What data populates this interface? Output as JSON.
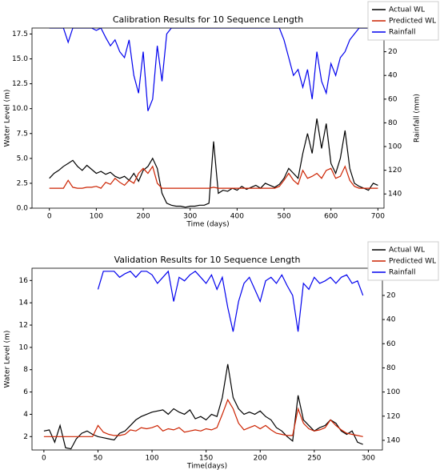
{
  "chart_data": [
    {
      "type": "line",
      "title": "Calibration Results for 10 Sequence Length",
      "xlabel": "Time (days)",
      "ylabel": "Water Level (m)",
      "y2label": "Rainfall (mm)",
      "legend": "upper right",
      "x": [
        0,
        10,
        20,
        30,
        40,
        50,
        60,
        70,
        80,
        90,
        100,
        110,
        120,
        130,
        140,
        150,
        160,
        170,
        180,
        190,
        200,
        210,
        220,
        230,
        240,
        250,
        260,
        270,
        280,
        290,
        300,
        310,
        320,
        330,
        340,
        350,
        360,
        370,
        380,
        390,
        400,
        410,
        420,
        430,
        440,
        450,
        460,
        470,
        480,
        490,
        500,
        510,
        520,
        530,
        540,
        550,
        560,
        570,
        580,
        590,
        600,
        610,
        620,
        630,
        640,
        650,
        660,
        670,
        680,
        690,
        700
      ],
      "series": [
        {
          "name": "Actual WL",
          "color": "#000000",
          "values": [
            3.0,
            3.5,
            3.8,
            4.2,
            4.5,
            4.8,
            4.2,
            3.8,
            4.3,
            3.9,
            3.5,
            3.7,
            3.4,
            3.6,
            3.2,
            3.0,
            3.2,
            2.8,
            3.5,
            2.7,
            3.8,
            4.2,
            5.0,
            4.0,
            1.5,
            0.5,
            0.3,
            0.2,
            0.2,
            0.1,
            0.2,
            0.2,
            0.3,
            0.3,
            0.5,
            6.7,
            1.5,
            1.8,
            1.7,
            2.0,
            1.8,
            2.2,
            1.9,
            2.1,
            2.3,
            2.0,
            2.5,
            2.3,
            2.1,
            2.4,
            3.0,
            4.0,
            3.5,
            3.0,
            5.5,
            7.5,
            5.5,
            9.0,
            6.0,
            8.5,
            4.5,
            3.5,
            5.0,
            7.8,
            4.0,
            2.5,
            2.2,
            2.0,
            1.8,
            2.5,
            2.3
          ]
        },
        {
          "name": "Predicted WL",
          "color": "#cc2200",
          "values": [
            2.0,
            2.0,
            2.0,
            2.0,
            2.8,
            2.1,
            2.0,
            2.0,
            2.1,
            2.1,
            2.2,
            2.0,
            2.6,
            2.4,
            3.0,
            2.6,
            2.3,
            2.8,
            2.5,
            3.5,
            4.0,
            3.5,
            4.2,
            2.5,
            2.0,
            2.0,
            2.0,
            2.0,
            2.0,
            2.0,
            2.0,
            2.0,
            2.0,
            2.0,
            2.0,
            2.1,
            2.0,
            2.0,
            2.0,
            2.0,
            2.0,
            2.0,
            2.0,
            2.0,
            2.0,
            2.0,
            2.0,
            2.0,
            2.0,
            2.2,
            2.8,
            3.5,
            2.8,
            2.4,
            3.8,
            3.0,
            3.2,
            3.5,
            3.0,
            3.8,
            4.0,
            3.0,
            3.2,
            4.2,
            2.8,
            2.2,
            2.0,
            2.0,
            2.0,
            2.0,
            2.0
          ]
        },
        {
          "name": "Rainfall",
          "color": "#0000ee",
          "axis": "y2",
          "values": [
            0,
            0,
            0,
            0,
            12,
            0,
            0,
            0,
            0,
            0,
            2,
            0,
            8,
            15,
            10,
            20,
            25,
            10,
            40,
            55,
            20,
            70,
            60,
            15,
            45,
            5,
            0,
            0,
            0,
            0,
            0,
            0,
            0,
            0,
            0,
            0,
            0,
            0,
            0,
            0,
            0,
            0,
            0,
            0,
            0,
            0,
            0,
            0,
            0,
            0,
            10,
            25,
            40,
            35,
            50,
            35,
            60,
            20,
            45,
            55,
            30,
            40,
            25,
            20,
            10,
            5,
            0,
            0,
            0,
            0,
            0
          ]
        }
      ],
      "xlim": [
        -37,
        713
      ],
      "ylim": [
        0,
        18.1
      ],
      "y2lim": [
        152,
        0
      ],
      "xticks": [
        0,
        100,
        200,
        300,
        400,
        500,
        600,
        700
      ],
      "yticks": [
        {
          "value": 0,
          "label": "0.0"
        },
        2.5,
        {
          "value": 5,
          "label": "5.0"
        },
        7.5,
        {
          "value": 10,
          "label": "10.0"
        },
        12.5,
        {
          "value": 15,
          "label": "15.0"
        },
        17.5
      ],
      "y2ticks": [
        20,
        40,
        60,
        80,
        100,
        120,
        140
      ]
    },
    {
      "type": "line",
      "title": "Validation Results for 10 Sequence Length",
      "xlabel": "Time(days)",
      "ylabel": "Water Level (m)",
      "legend": "upper right",
      "x": [
        0,
        5,
        10,
        15,
        20,
        25,
        30,
        35,
        40,
        45,
        50,
        55,
        60,
        65,
        70,
        75,
        80,
        85,
        90,
        95,
        100,
        105,
        110,
        115,
        120,
        125,
        130,
        135,
        140,
        145,
        150,
        155,
        160,
        165,
        170,
        175,
        180,
        185,
        190,
        195,
        200,
        205,
        210,
        215,
        220,
        225,
        230,
        235,
        240,
        245,
        250,
        255,
        260,
        265,
        270,
        275,
        280,
        285,
        290,
        295
      ],
      "series": [
        {
          "name": "Actual WL",
          "color": "#000000",
          "values": [
            2.5,
            2.6,
            1.5,
            3.0,
            1.0,
            0.9,
            1.8,
            2.3,
            2.5,
            2.2,
            2.0,
            1.9,
            1.8,
            1.7,
            2.3,
            2.5,
            3.0,
            3.5,
            3.8,
            4.0,
            4.2,
            4.3,
            4.4,
            4.0,
            4.5,
            4.2,
            4.0,
            4.4,
            3.6,
            3.8,
            3.5,
            4.0,
            3.8,
            5.5,
            8.5,
            5.5,
            4.5,
            4.0,
            4.2,
            4.0,
            4.3,
            3.8,
            3.5,
            2.8,
            2.5,
            2.0,
            1.6,
            5.7,
            3.5,
            3.0,
            2.5,
            2.8,
            3.0,
            3.5,
            3.2,
            2.5,
            2.2,
            2.5,
            1.5,
            1.3
          ]
        },
        {
          "name": "Predicted WL",
          "color": "#cc2200",
          "values": [
            2.0,
            2.0,
            2.0,
            2.0,
            2.0,
            2.0,
            2.0,
            2.0,
            2.0,
            2.0,
            3.0,
            2.4,
            2.2,
            2.1,
            2.1,
            2.2,
            2.6,
            2.5,
            2.8,
            2.7,
            2.8,
            3.0,
            2.5,
            2.7,
            2.6,
            2.8,
            2.4,
            2.5,
            2.6,
            2.5,
            2.7,
            2.6,
            2.8,
            4.0,
            5.3,
            4.5,
            3.2,
            2.6,
            2.8,
            3.0,
            2.7,
            3.0,
            2.6,
            2.3,
            2.2,
            2.1,
            2.1,
            4.5,
            3.2,
            2.7,
            2.5,
            2.6,
            2.8,
            3.5,
            3.0,
            2.6,
            2.3,
            2.2,
            2.1,
            2.0
          ]
        },
        {
          "name": "Rainfall",
          "color": "#0000ee",
          "axis": "y2",
          "values": [
            null,
            null,
            null,
            null,
            null,
            null,
            null,
            null,
            null,
            null,
            15,
            0,
            0,
            0,
            5,
            2,
            0,
            5,
            0,
            0,
            3,
            10,
            5,
            0,
            25,
            5,
            8,
            3,
            0,
            5,
            10,
            3,
            15,
            5,
            30,
            50,
            25,
            10,
            5,
            15,
            25,
            8,
            5,
            10,
            3,
            12,
            20,
            50,
            10,
            15,
            5,
            10,
            8,
            5,
            10,
            5,
            3,
            10,
            8,
            20
          ]
        }
      ],
      "xlim": [
        -11,
        313
      ],
      "ylim": [
        0.8,
        17.1
      ],
      "y2lim": [
        148,
        -2.5
      ],
      "xticks": [
        0,
        50,
        100,
        150,
        200,
        250,
        300
      ],
      "yticks": [
        2,
        4,
        6,
        8,
        10,
        12,
        14,
        16
      ],
      "y2ticks": [
        20,
        40,
        60,
        80,
        100,
        120,
        140
      ]
    }
  ]
}
